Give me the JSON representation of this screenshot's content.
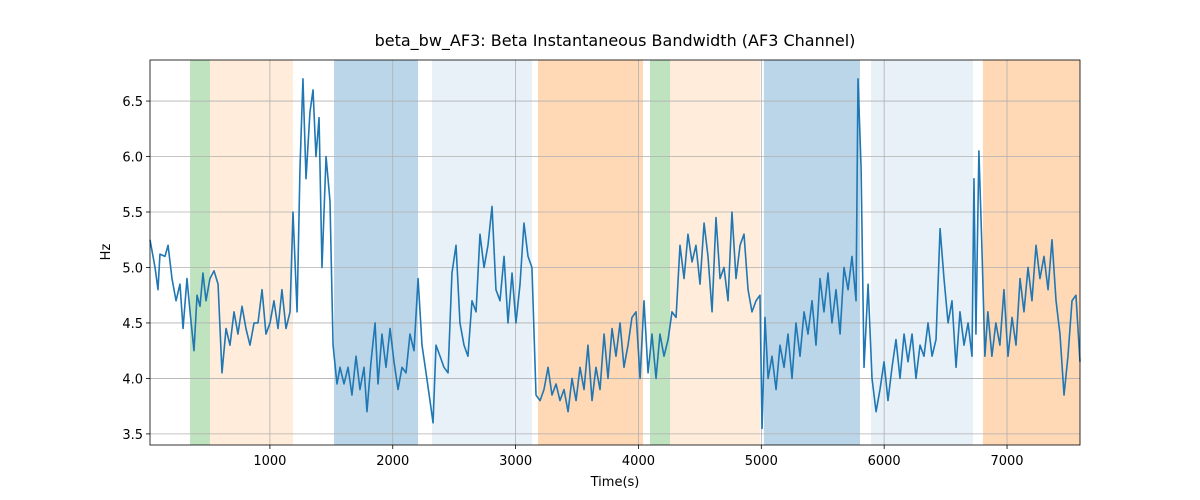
{
  "chart_data": {
    "type": "line",
    "title": "beta_bw_AF3: Beta Instantaneous Bandwidth (AF3 Channel)",
    "x_label": "Time(s)",
    "y_label": "Hz",
    "xlim": [
      24,
      7594
    ],
    "ylim": [
      3.4,
      6.87
    ],
    "xticks": [
      1000,
      2000,
      3000,
      4000,
      5000,
      6000,
      7000
    ],
    "yticks": [
      3.5,
      {
        "value": 4,
        "label": "4.0"
      },
      4.5,
      {
        "value": 5,
        "label": "5.0"
      },
      5.5,
      {
        "value": 6,
        "label": "6.0"
      },
      6.5
    ],
    "grid": true,
    "spans": [
      {
        "x": [
          350,
          512
        ],
        "color": "#2ca02c",
        "opacity": 0.3
      },
      {
        "x": [
          512,
          1188
        ],
        "color": "#ff7f0e",
        "opacity": 0.15
      },
      {
        "x": [
          1522,
          2206
        ],
        "color": "#1f77b4",
        "opacity": 0.3
      },
      {
        "x": [
          2319,
          3133
        ],
        "color": "#1f77b4",
        "opacity": 0.1
      },
      {
        "x": [
          3182,
          4037
        ],
        "color": "#ff7f0e",
        "opacity": 0.3
      },
      {
        "x": [
          4094,
          4257
        ],
        "color": "#2ca02c",
        "opacity": 0.3
      },
      {
        "x": [
          4257,
          4989
        ],
        "color": "#ff7f0e",
        "opacity": 0.15
      },
      {
        "x": [
          5021,
          5803
        ],
        "color": "#1f77b4",
        "opacity": 0.3
      },
      {
        "x": [
          5893,
          6723
        ],
        "color": "#1f77b4",
        "opacity": 0.1
      },
      {
        "x": [
          6804,
          7594
        ],
        "color": "#ff7f0e",
        "opacity": 0.3
      }
    ],
    "x": [
      24,
      65,
      89,
      105,
      146,
      171,
      203,
      236,
      268,
      293,
      325,
      350,
      382,
      407,
      431,
      455,
      480,
      512,
      545,
      578,
      610,
      643,
      675,
      708,
      740,
      773,
      805,
      838,
      871,
      903,
      936,
      968,
      1001,
      1033,
      1066,
      1098,
      1131,
      1164,
      1188,
      1221,
      1245,
      1269,
      1294,
      1326,
      1351,
      1375,
      1400,
      1424,
      1457,
      1489,
      1514,
      1546,
      1571,
      1603,
      1636,
      1668,
      1701,
      1733,
      1766,
      1790,
      1823,
      1856,
      1880,
      1912,
      1945,
      1978,
      2010,
      2043,
      2075,
      2108,
      2140,
      2173,
      2206,
      2238,
      2271,
      2303,
      2328,
      2352,
      2385,
      2417,
      2450,
      2482,
      2515,
      2547,
      2580,
      2612,
      2645,
      2678,
      2710,
      2743,
      2775,
      2808,
      2840,
      2873,
      2906,
      2938,
      2971,
      3003,
      3036,
      3068,
      3101,
      3133,
      3166,
      3199,
      3231,
      3264,
      3296,
      3329,
      3361,
      3394,
      3427,
      3459,
      3492,
      3524,
      3557,
      3589,
      3622,
      3654,
      3687,
      3720,
      3752,
      3785,
      3817,
      3850,
      3882,
      3915,
      3947,
      3980,
      4013,
      4045,
      4078,
      4110,
      4143,
      4175,
      4208,
      4241,
      4273,
      4306,
      4338,
      4371,
      4403,
      4436,
      4468,
      4501,
      4534,
      4566,
      4599,
      4631,
      4664,
      4696,
      4729,
      4761,
      4794,
      4827,
      4859,
      4892,
      4924,
      4957,
      4989,
      5006,
      5030,
      5055,
      5087,
      5120,
      5152,
      5185,
      5217,
      5250,
      5282,
      5315,
      5348,
      5380,
      5413,
      5445,
      5478,
      5510,
      5543,
      5575,
      5608,
      5641,
      5673,
      5706,
      5738,
      5771,
      5787,
      5812,
      5836,
      5869,
      5901,
      5934,
      5966,
      5999,
      6031,
      6064,
      6096,
      6129,
      6162,
      6194,
      6227,
      6259,
      6292,
      6324,
      6357,
      6390,
      6422,
      6455,
      6487,
      6520,
      6552,
      6585,
      6617,
      6650,
      6683,
      6715,
      6731,
      6747,
      6771,
      6795,
      6820,
      6844,
      6877,
      6909,
      6942,
      6975,
      7008,
      7041,
      7073,
      7106,
      7138,
      7171,
      7203,
      7236,
      7268,
      7301,
      7334,
      7366,
      7399,
      7431,
      7464,
      7496,
      7529,
      7561,
      7594
    ],
    "series": [
      {
        "color": "#1f77b4",
        "values": [
          5.25,
          5.0,
          4.8,
          5.12,
          5.1,
          5.2,
          4.9,
          4.7,
          4.85,
          4.45,
          4.9,
          4.6,
          4.25,
          4.75,
          4.65,
          4.95,
          4.7,
          4.9,
          4.97,
          4.85,
          4.05,
          4.45,
          4.3,
          4.6,
          4.4,
          4.65,
          4.45,
          4.3,
          4.5,
          4.5,
          4.8,
          4.4,
          4.5,
          4.7,
          4.45,
          4.8,
          4.45,
          4.6,
          5.5,
          4.6,
          5.9,
          6.7,
          5.8,
          6.4,
          6.6,
          6.0,
          6.35,
          5.0,
          6.0,
          5.6,
          4.3,
          3.95,
          4.1,
          3.95,
          4.1,
          3.85,
          4.2,
          3.9,
          4.1,
          3.7,
          4.15,
          4.5,
          3.95,
          4.4,
          4.1,
          4.45,
          4.15,
          3.9,
          4.1,
          4.05,
          4.4,
          4.25,
          4.9,
          4.3,
          4.05,
          3.8,
          3.6,
          4.3,
          4.2,
          4.1,
          4.05,
          4.95,
          5.2,
          4.5,
          4.3,
          4.2,
          4.7,
          4.6,
          5.3,
          5.0,
          5.2,
          5.55,
          4.8,
          4.7,
          5.1,
          4.5,
          4.95,
          4.5,
          4.85,
          5.4,
          5.1,
          5.0,
          3.85,
          3.8,
          3.9,
          4.1,
          3.85,
          3.95,
          3.8,
          3.9,
          3.7,
          4.0,
          3.8,
          4.1,
          3.9,
          4.3,
          3.8,
          4.1,
          3.9,
          4.4,
          4.0,
          4.45,
          4.2,
          4.5,
          4.1,
          4.3,
          4.55,
          4.6,
          4.0,
          4.7,
          4.05,
          4.4,
          4.0,
          4.4,
          4.2,
          4.35,
          4.6,
          4.55,
          5.2,
          4.9,
          5.3,
          5.05,
          5.2,
          4.85,
          5.4,
          5.1,
          4.6,
          5.45,
          4.9,
          5.0,
          4.7,
          5.5,
          4.9,
          5.2,
          5.3,
          4.8,
          4.6,
          4.7,
          4.75,
          3.55,
          4.55,
          4.0,
          4.2,
          3.9,
          4.3,
          4.1,
          4.4,
          4.0,
          4.5,
          4.2,
          4.6,
          4.4,
          4.7,
          4.3,
          4.9,
          4.6,
          4.95,
          4.5,
          4.8,
          4.4,
          5.0,
          4.8,
          5.1,
          4.7,
          6.7,
          5.9,
          4.1,
          4.85,
          4.0,
          3.7,
          3.9,
          4.15,
          3.8,
          4.1,
          4.35,
          4.0,
          4.4,
          4.15,
          4.4,
          4.0,
          4.3,
          4.2,
          4.5,
          4.2,
          4.35,
          5.35,
          4.9,
          4.5,
          4.7,
          4.1,
          4.6,
          4.3,
          4.5,
          4.2,
          5.8,
          4.4,
          6.05,
          5.2,
          4.2,
          4.6,
          4.2,
          4.5,
          4.3,
          4.8,
          4.2,
          4.55,
          4.3,
          4.9,
          4.6,
          5.0,
          4.7,
          5.2,
          4.9,
          5.1,
          4.8,
          5.25,
          4.7,
          4.4,
          3.85,
          4.2,
          4.7,
          4.75,
          4.15
        ]
      }
    ]
  }
}
